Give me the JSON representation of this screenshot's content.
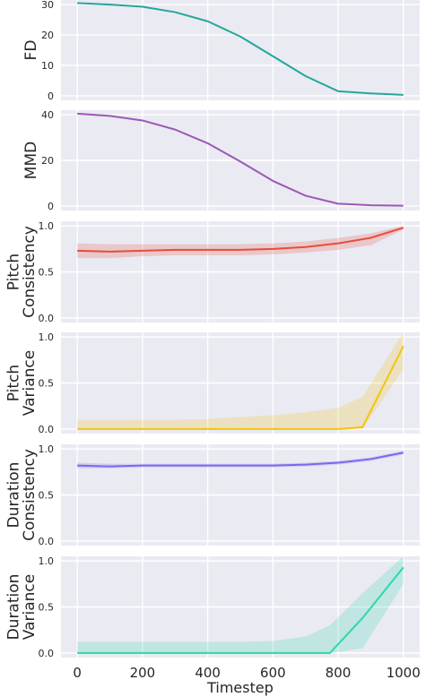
{
  "chart_data": [
    {
      "type": "line",
      "ylabel": [
        "FD"
      ],
      "ylim": [
        -1.5,
        31.5
      ],
      "yticks": [
        0,
        10,
        20,
        30
      ],
      "xticks": [
        0,
        200,
        400,
        600,
        800,
        1000
      ],
      "xlim": [
        -50,
        1050
      ],
      "grid": true,
      "color": "#26a69a",
      "x": [
        0,
        100,
        200,
        300,
        400,
        500,
        600,
        700,
        800,
        900,
        1000
      ],
      "values": [
        30.5,
        30.0,
        29.3,
        27.5,
        24.5,
        19.5,
        13.0,
        6.5,
        1.5,
        0.8,
        0.3
      ],
      "band": null
    },
    {
      "type": "line",
      "ylabel": [
        "MMD"
      ],
      "ylim": [
        -2,
        42
      ],
      "yticks": [
        0,
        20,
        40
      ],
      "xticks": [
        0,
        200,
        400,
        600,
        800,
        1000
      ],
      "xlim": [
        -50,
        1050
      ],
      "grid": true,
      "color": "#9b59b6",
      "x": [
        0,
        100,
        200,
        300,
        400,
        500,
        600,
        700,
        800,
        900,
        1000
      ],
      "values": [
        40.5,
        39.5,
        37.5,
        33.5,
        27.5,
        19.5,
        11.0,
        4.5,
        1.0,
        0.3,
        0.1
      ],
      "band": null
    },
    {
      "type": "line",
      "ylabel": [
        "Pitch",
        "Consistency"
      ],
      "ylim": [
        -0.05,
        1.05
      ],
      "yticks": [
        0.0,
        0.5,
        1.0
      ],
      "xticks": [
        0,
        200,
        400,
        600,
        800,
        1000
      ],
      "xlim": [
        -50,
        1050
      ],
      "grid": true,
      "color": "#e74c3c",
      "x": [
        0,
        100,
        200,
        300,
        400,
        500,
        600,
        700,
        800,
        900,
        1000
      ],
      "values": [
        0.73,
        0.72,
        0.73,
        0.74,
        0.74,
        0.74,
        0.75,
        0.77,
        0.81,
        0.87,
        0.98
      ],
      "band": {
        "lower": [
          0.65,
          0.65,
          0.67,
          0.68,
          0.68,
          0.68,
          0.69,
          0.71,
          0.74,
          0.79,
          0.96
        ],
        "upper": [
          0.81,
          0.8,
          0.8,
          0.8,
          0.8,
          0.8,
          0.81,
          0.83,
          0.87,
          0.92,
          1.0
        ]
      }
    },
    {
      "type": "line",
      "ylabel": [
        "Pitch",
        "Variance"
      ],
      "ylim": [
        -0.05,
        1.05
      ],
      "yticks": [
        0.0,
        0.5,
        1.0
      ],
      "xticks": [
        0,
        200,
        400,
        600,
        800,
        1000
      ],
      "xlim": [
        -50,
        1050
      ],
      "grid": true,
      "color": "#f1c40f",
      "x": [
        0,
        100,
        200,
        300,
        400,
        500,
        600,
        700,
        800,
        875,
        1000
      ],
      "values": [
        0.0,
        0.0,
        0.0,
        0.0,
        0.0,
        0.0,
        0.0,
        0.0,
        0.0,
        0.02,
        0.9
      ],
      "band": {
        "lower": [
          0.0,
          0.0,
          0.0,
          0.0,
          0.0,
          0.0,
          0.0,
          0.0,
          0.0,
          0.0,
          0.65
        ],
        "upper": [
          0.1,
          0.1,
          0.1,
          0.1,
          0.11,
          0.13,
          0.15,
          0.18,
          0.23,
          0.35,
          1.05
        ]
      }
    },
    {
      "type": "line",
      "ylabel": [
        "Duration",
        "Consistency"
      ],
      "ylim": [
        -0.05,
        1.05
      ],
      "yticks": [
        0.0,
        0.5,
        1.0
      ],
      "xticks": [
        0,
        200,
        400,
        600,
        800,
        1000
      ],
      "xlim": [
        -50,
        1050
      ],
      "grid": true,
      "color": "#7b68ee",
      "x": [
        0,
        100,
        200,
        300,
        400,
        500,
        600,
        700,
        800,
        900,
        1000
      ],
      "values": [
        0.82,
        0.81,
        0.82,
        0.82,
        0.82,
        0.82,
        0.82,
        0.83,
        0.85,
        0.89,
        0.96
      ],
      "band": {
        "lower": [
          0.79,
          0.79,
          0.8,
          0.8,
          0.8,
          0.8,
          0.8,
          0.81,
          0.83,
          0.87,
          0.94
        ],
        "upper": [
          0.85,
          0.84,
          0.84,
          0.84,
          0.84,
          0.84,
          0.84,
          0.85,
          0.87,
          0.91,
          0.98
        ]
      }
    },
    {
      "type": "line",
      "ylabel": [
        "Duration",
        "Variance"
      ],
      "ylim": [
        -0.05,
        1.05
      ],
      "yticks": [
        0.0,
        0.5,
        1.0
      ],
      "xticks": [
        0,
        200,
        400,
        600,
        800,
        1000
      ],
      "xlabel": "Timestep",
      "xlim": [
        -50,
        1050
      ],
      "grid": true,
      "color": "#2ed8a8",
      "x": [
        0,
        100,
        200,
        300,
        400,
        500,
        600,
        700,
        775,
        875,
        1000
      ],
      "values": [
        0.0,
        0.0,
        0.0,
        0.0,
        0.0,
        0.0,
        0.0,
        0.0,
        0.0,
        0.38,
        0.93
      ],
      "band": {
        "lower": [
          0.0,
          0.0,
          0.0,
          0.0,
          0.0,
          0.0,
          0.0,
          0.0,
          0.0,
          0.05,
          0.75
        ],
        "upper": [
          0.12,
          0.12,
          0.12,
          0.12,
          0.12,
          0.12,
          0.13,
          0.18,
          0.3,
          0.65,
          1.08
        ]
      }
    }
  ]
}
